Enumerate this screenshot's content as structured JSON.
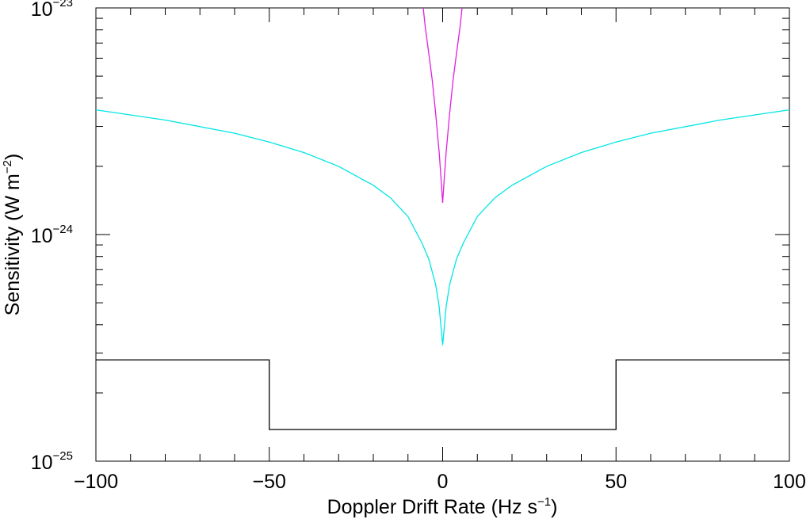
{
  "chart_data": {
    "type": "line",
    "xlabel": {
      "text": "Doppler Drift Rate (Hz s",
      "sup": "−1",
      "after": ")"
    },
    "ylabel": {
      "text": "Sensitivity (W m",
      "sup": "−2",
      "after": ")"
    },
    "yscale": "log",
    "xlim": [
      -100,
      100
    ],
    "ylim": [
      1e-25,
      1e-23
    ],
    "xticks": [
      {
        "value": -100,
        "label": "−100"
      },
      {
        "value": -50,
        "label": "−50"
      },
      0,
      50,
      100
    ],
    "xminorticks": [
      -90,
      -80,
      -70,
      -60,
      -40,
      -30,
      -20,
      -10,
      10,
      20,
      30,
      40,
      60,
      70,
      80,
      90
    ],
    "yticks": [
      {
        "value": 1e-25,
        "label": "10",
        "exponent": "−25"
      },
      {
        "value": 1e-24,
        "label": "10",
        "exponent": "−24"
      },
      {
        "value": 1e-23,
        "label": "10",
        "exponent": "−23"
      }
    ],
    "yminorticks": [
      2e-25,
      3e-25,
      4e-25,
      5e-25,
      6e-25,
      7e-25,
      8e-25,
      9e-25,
      2e-24,
      3e-24,
      4e-24,
      5e-24,
      6e-24,
      7e-24,
      8e-24,
      9e-24
    ],
    "series": [
      {
        "color": "#000000",
        "x": [
          -100,
          -50,
          -50,
          50,
          50,
          100
        ],
        "values": [
          2.8e-25,
          2.8e-25,
          1.38e-25,
          1.38e-25,
          2.8e-25,
          2.8e-25
        ]
      },
      {
        "color": "#00e5e5",
        "x": [
          -100,
          -80,
          -60,
          -50,
          -40,
          -30,
          -20,
          -15,
          -10,
          -6,
          -4,
          -2,
          -1,
          0,
          1,
          2,
          4,
          6,
          10,
          15,
          20,
          30,
          40,
          50,
          60,
          80,
          100
        ],
        "values": [
          3.55e-24,
          3.2e-24,
          2.8e-24,
          2.56e-24,
          2.3e-24,
          2e-24,
          1.65e-24,
          1.45e-24,
          1.2e-24,
          9.2e-25,
          7.8e-25,
          6e-25,
          4.8e-25,
          3.25e-25,
          4.8e-25,
          6e-25,
          7.8e-25,
          9.2e-25,
          1.2e-24,
          1.45e-24,
          1.65e-24,
          2e-24,
          2.3e-24,
          2.56e-24,
          2.8e-24,
          3.2e-24,
          3.55e-24
        ]
      },
      {
        "color": "#e020e0",
        "x": [
          -5.6,
          -5,
          -4,
          -3,
          -2,
          -1,
          -0.5,
          0,
          0.5,
          1,
          2,
          3,
          4,
          5,
          5.6
        ],
        "values": [
          1e-23,
          8.2e-24,
          6.3e-24,
          4.8e-24,
          3.4e-24,
          2.3e-24,
          1.8e-24,
          1.38e-24,
          1.8e-24,
          2.3e-24,
          3.4e-24,
          4.8e-24,
          6.3e-24,
          8.2e-24,
          1e-23
        ]
      }
    ]
  }
}
